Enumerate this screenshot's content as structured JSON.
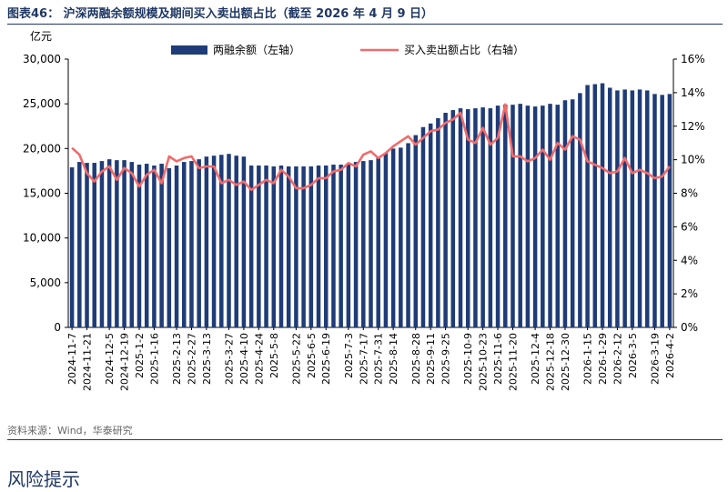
{
  "figure": {
    "title": "图表46：  沪深两融余额规模及期间买入卖出额占比（截至 2026 年 4 月 9 日）",
    "source": "资料来源：Wind，华泰研究",
    "section_heading": "风险提示"
  },
  "chart_data": {
    "type": "bar+line",
    "left_unit": "亿元",
    "left_ticks": [
      "0",
      "5,000",
      "10,000",
      "15,000",
      "20,000",
      "25,000",
      "30,000"
    ],
    "right_ticks": [
      "0%",
      "2%",
      "4%",
      "6%",
      "8%",
      "10%",
      "12%",
      "14%",
      "16%"
    ],
    "ylim_left": [
      0,
      30000
    ],
    "ylim_right": [
      0,
      0.16
    ],
    "grid": false,
    "legend_position": "top",
    "colors": {
      "bar": "#1f3c78",
      "line": "#f26b6b"
    },
    "x_tick_labels": [
      "2024-11-7",
      "2024-11-21",
      "2024-12-5",
      "2024-12-19",
      "2025-1-2",
      "2025-1-16",
      "2025-2-13",
      "2025-2-27",
      "2025-3-13",
      "2025-3-27",
      "2025-4-10",
      "2025-4-24",
      "2025-5-8",
      "2025-5-22",
      "2025-6-5",
      "2025-6-19",
      "2025-7-3",
      "2025-7-17",
      "2025-7-31",
      "2025-8-14",
      "2025-8-28",
      "2025-9-11",
      "2025-9-25",
      "2025-10-9",
      "2025-10-23",
      "2025-11-6",
      "2025-11-20",
      "2025-12-4",
      "2025-12-18",
      "2025-12-30",
      "2026-1-15",
      "2026-1-29",
      "2026-2-12",
      "2026-3-5",
      "2026-3-19",
      "2026-4-2"
    ],
    "series": [
      {
        "name": "两融余额（左轴）",
        "kind": "bar",
        "axis": "left",
        "values": [
          17900,
          18500,
          18400,
          18400,
          18600,
          18800,
          18700,
          18700,
          18500,
          18200,
          18300,
          18100,
          18300,
          17800,
          18100,
          18500,
          18600,
          18800,
          19100,
          19200,
          19300,
          19400,
          19200,
          19100,
          18100,
          18100,
          18100,
          18000,
          18100,
          18000,
          18000,
          18000,
          18000,
          18100,
          18100,
          18200,
          18200,
          18300,
          18500,
          18600,
          18700,
          19100,
          19500,
          20000,
          20100,
          20600,
          21500,
          22400,
          22800,
          23400,
          24000,
          24300,
          24500,
          24400,
          24500,
          24600,
          24500,
          24800,
          24900,
          24900,
          25000,
          24800,
          24700,
          24800,
          25000,
          24900,
          25400,
          25500,
          26200,
          27100,
          27200,
          27300,
          26800,
          26500,
          26600,
          26500,
          26600,
          26500,
          26100,
          26000,
          26100
        ]
      },
      {
        "name": "买入卖出额占比（右轴）",
        "kind": "line",
        "axis": "right",
        "values": [
          0.107,
          0.103,
          0.092,
          0.087,
          0.093,
          0.096,
          0.088,
          0.095,
          0.092,
          0.084,
          0.091,
          0.094,
          0.086,
          0.102,
          0.099,
          0.101,
          0.102,
          0.095,
          0.096,
          0.096,
          0.086,
          0.088,
          0.085,
          0.087,
          0.082,
          0.085,
          0.088,
          0.086,
          0.094,
          0.09,
          0.083,
          0.083,
          0.085,
          0.089,
          0.089,
          0.093,
          0.094,
          0.098,
          0.096,
          0.103,
          0.105,
          0.101,
          0.104,
          0.108,
          0.111,
          0.114,
          0.109,
          0.113,
          0.117,
          0.118,
          0.122,
          0.124,
          0.128,
          0.112,
          0.11,
          0.119,
          0.109,
          0.113,
          0.133,
          0.102,
          0.102,
          0.099,
          0.101,
          0.106,
          0.1,
          0.11,
          0.106,
          0.114,
          0.112,
          0.099,
          0.097,
          0.095,
          0.092,
          0.093,
          0.101,
          0.092,
          0.094,
          0.092,
          0.089,
          0.09,
          0.096
        ]
      }
    ]
  }
}
